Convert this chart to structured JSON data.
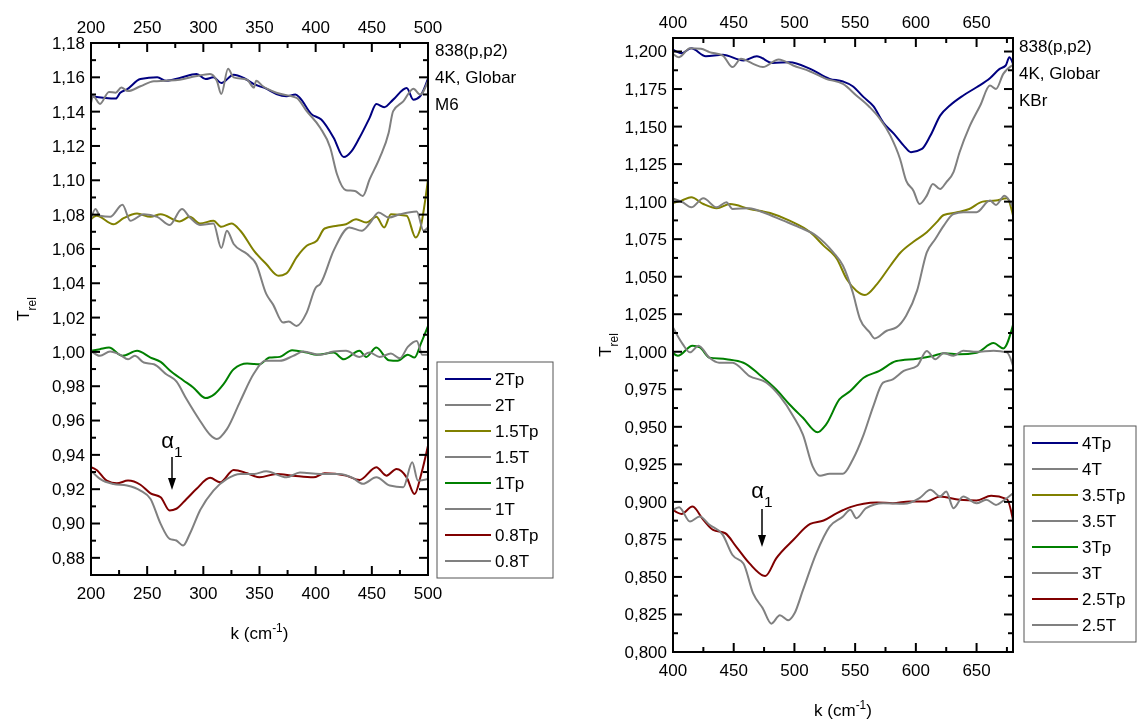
{
  "chart_data": [
    {
      "type": "line",
      "xlabel": "k (cm$^{-1}$)",
      "ylabel": "T$_{rel}$",
      "legend": "right",
      "annotations": [
        "838(p,p2)",
        "4K, Globar",
        "M6",
        "α$_{1}$"
      ],
      "xlim": [
        200,
        500
      ],
      "ylim": [
        0.87,
        1.18
      ],
      "xticks": [
        200,
        {
          "value": 225,
          "label": null
        },
        250,
        {
          "value": 275,
          "label": null
        },
        300,
        {
          "value": 325,
          "label": null
        },
        350,
        {
          "value": 375,
          "label": null
        },
        400,
        {
          "value": 425,
          "label": null
        },
        450,
        {
          "value": 475,
          "label": null
        },
        500
      ],
      "x2lim": [
        200,
        500
      ],
      "x2ticks": [
        200,
        {
          "value": 225,
          "label": null
        },
        250,
        {
          "value": 275,
          "label": null
        },
        300,
        {
          "value": 325,
          "label": null
        },
        350,
        {
          "value": 375,
          "label": null
        },
        400,
        {
          "value": 425,
          "label": null
        },
        450,
        {
          "value": 475,
          "label": null
        },
        500
      ],
      "yticks": [
        {
          "value": 0.88,
          "label": "0,88"
        },
        {
          "value": 0.89,
          "label": null
        },
        {
          "value": 0.9,
          "label": "0,90"
        },
        {
          "value": 0.91,
          "label": null
        },
        {
          "value": 0.92,
          "label": "0,92"
        },
        {
          "value": 0.93,
          "label": null
        },
        {
          "value": 0.94,
          "label": "0,94"
        },
        {
          "value": 0.95,
          "label": null
        },
        {
          "value": 0.96,
          "label": "0,96"
        },
        {
          "value": 0.97,
          "label": null
        },
        {
          "value": 0.98,
          "label": "0,98"
        },
        {
          "value": 0.99,
          "label": null
        },
        {
          "value": 1.0,
          "label": "1,00"
        },
        {
          "value": 1.01,
          "label": null
        },
        {
          "value": 1.02,
          "label": "1,02"
        },
        {
          "value": 1.03,
          "label": null
        },
        {
          "value": 1.04,
          "label": "1,04"
        },
        {
          "value": 1.05,
          "label": null
        },
        {
          "value": 1.06,
          "label": "1,06"
        },
        {
          "value": 1.07,
          "label": null
        },
        {
          "value": 1.08,
          "label": "1,08"
        },
        {
          "value": 1.09,
          "label": null
        },
        {
          "value": 1.1,
          "label": "1,10"
        },
        {
          "value": 1.11,
          "label": null
        },
        {
          "value": 1.12,
          "label": "1,12"
        },
        {
          "value": 1.13,
          "label": null
        },
        {
          "value": 1.14,
          "label": "1,14"
        },
        {
          "value": 1.15,
          "label": null
        },
        {
          "value": 1.16,
          "label": "1,16"
        },
        {
          "value": 1.17,
          "label": null
        },
        {
          "value": 1.18,
          "label": "1,18"
        }
      ],
      "series": [
        {
          "name": "2Tp",
          "color": "#000080",
          "x": [
            200,
            222,
            226,
            232,
            244,
            259,
            267,
            279,
            294,
            302,
            309,
            316,
            327,
            336,
            345,
            356,
            365,
            374,
            382,
            386,
            396,
            405,
            416,
            425,
            432,
            439,
            448,
            454,
            461,
            469,
            481,
            487,
            493,
            500
          ],
          "values": [
            1.149,
            1.1476,
            1.151,
            1.153,
            1.159,
            1.16,
            1.158,
            1.1596,
            1.162,
            1.159,
            1.16,
            1.1567,
            1.1615,
            1.1596,
            1.156,
            1.1534,
            1.1503,
            1.149,
            1.15,
            1.148,
            1.1387,
            1.1354,
            1.1248,
            1.1135,
            1.117,
            1.1248,
            1.1364,
            1.1445,
            1.1426,
            1.147,
            1.1538,
            1.147,
            1.149,
            1.1592
          ]
        },
        {
          "name": "2T",
          "color": "#808080",
          "x": [
            200,
            202,
            208,
            216,
            222,
            227,
            233,
            244,
            256,
            267,
            279,
            293,
            306,
            312,
            316,
            322,
            327,
            339,
            345,
            347,
            353,
            365,
            383,
            392,
            404,
            413,
            419,
            427,
            435,
            442,
            448,
            457,
            465,
            469,
            478,
            487,
            493,
            500
          ],
          "values": [
            1.145,
            1.149,
            1.1445,
            1.1515,
            1.151,
            1.154,
            1.152,
            1.1548,
            1.1577,
            1.158,
            1.1586,
            1.1606,
            1.162,
            1.158,
            1.1503,
            1.165,
            1.16,
            1.1586,
            1.154,
            1.158,
            1.1548,
            1.151,
            1.148,
            1.1403,
            1.1306,
            1.119,
            1.1035,
            1.0942,
            1.0938,
            1.0909,
            1.1005,
            1.1131,
            1.1277,
            1.1403,
            1.146,
            1.1534,
            1.15,
            1.158
          ]
        },
        {
          "name": "1.5Tp",
          "color": "#808000",
          "x": [
            200,
            205,
            220,
            229,
            241,
            253,
            262,
            279,
            288,
            297,
            309,
            316,
            325,
            333,
            345,
            356,
            367,
            374,
            383,
            392,
            401,
            408,
            419,
            427,
            436,
            445,
            454,
            461,
            467,
            481,
            489,
            493,
            500
          ],
          "values": [
            1.0773,
            1.0793,
            1.0744,
            1.0779,
            1.0806,
            1.0787,
            1.0802,
            1.076,
            1.0787,
            1.0748,
            1.0764,
            1.0729,
            1.0748,
            1.0706,
            1.059,
            1.0512,
            1.0444,
            1.0458,
            1.0551,
            1.0618,
            1.0648,
            1.0719,
            1.0735,
            1.0744,
            1.0773,
            1.0754,
            1.0787,
            1.0725,
            1.0802,
            1.0793,
            1.0667,
            1.0715,
            1.1006
          ]
        },
        {
          "name": "1.5T",
          "color": "#808080",
          "x": [
            200,
            204,
            208,
            217,
            228,
            235,
            247,
            259,
            270,
            281,
            288,
            297,
            309,
            316,
            321,
            327,
            339,
            347,
            356,
            362,
            371,
            376,
            383,
            392,
            400,
            404,
            416,
            430,
            441,
            448,
            456,
            465,
            475,
            490,
            496,
            500
          ],
          "values": [
            1.0773,
            1.0832,
            1.0793,
            1.0787,
            1.0857,
            1.0764,
            1.0802,
            1.0787,
            1.074,
            1.0832,
            1.0783,
            1.074,
            1.0748,
            1.0605,
            1.0706,
            1.0629,
            1.057,
            1.0512,
            1.0338,
            1.0277,
            1.0171,
            1.0177,
            1.0151,
            1.0229,
            1.0374,
            1.0395,
            1.059,
            1.0725,
            1.0706,
            1.0748,
            1.0812,
            1.0783,
            1.0802,
            1.0818,
            1.0706,
            1.0725
          ]
        },
        {
          "name": "1Tp",
          "color": "#008000",
          "x": [
            200,
            208,
            216,
            228,
            241,
            253,
            262,
            270,
            282,
            291,
            302,
            310,
            318,
            327,
            339,
            350,
            359,
            368,
            379,
            392,
            401,
            416,
            425,
            439,
            445,
            454,
            465,
            473,
            482,
            488,
            494,
            500
          ],
          "values": [
            1.0006,
            1.0016,
            1.0025,
            0.9977,
            1.0006,
            0.9967,
            0.9942,
            0.9893,
            0.9835,
            0.9793,
            0.9731,
            0.9754,
            0.9812,
            0.9899,
            0.9932,
            0.9928,
            0.9967,
            0.9971,
            1.001,
            0.9996,
            0.9983,
            0.9996,
            0.9957,
            1.0006,
            0.9971,
            1.0025,
            0.9952,
            0.9948,
            0.9983,
            0.9967,
            1.0054,
            1.0151
          ]
        },
        {
          "name": "1T",
          "color": "#808080",
          "x": [
            200,
            208,
            217,
            226,
            233,
            239,
            247,
            256,
            267,
            276,
            285,
            297,
            306,
            312,
            321,
            333,
            345,
            355,
            368,
            380,
            389,
            404,
            416,
            427,
            439,
            448,
            457,
            467,
            475,
            482,
            490,
            495,
            500
          ],
          "values": [
            1.0006,
            0.9977,
            1.0002,
            0.9983,
            0.9957,
            0.9977,
            0.9938,
            0.9928,
            0.987,
            0.9828,
            0.9725,
            0.9599,
            0.9517,
            0.9492,
            0.955,
            0.9715,
            0.9874,
            0.9948,
            0.9948,
            0.9977,
            1.0002,
            0.9983,
            1.0002,
            1.0006,
            0.9971,
            0.9996,
            0.9971,
            0.999,
            0.9963,
            1.0029,
            1.0064,
            0.9983,
            0.9983
          ]
        },
        {
          "name": "0.8Tp",
          "color": "#800000",
          "x": [
            200,
            205,
            214,
            223,
            233,
            244,
            253,
            262,
            270,
            276,
            285,
            294,
            306,
            315,
            327,
            339,
            350,
            365,
            380,
            398,
            408,
            427,
            439,
            454,
            463,
            472,
            481,
            488,
            494,
            500
          ],
          "values": [
            0.9328,
            0.9312,
            0.925,
            0.9234,
            0.925,
            0.9226,
            0.9176,
            0.9153,
            0.9076,
            0.9086,
            0.9143,
            0.9202,
            0.9266,
            0.924,
            0.9312,
            0.9293,
            0.9269,
            0.9289,
            0.9279,
            0.9269,
            0.9293,
            0.9279,
            0.9254,
            0.9328,
            0.9279,
            0.9318,
            0.9269,
            0.9172,
            0.9289,
            0.9454
          ]
        },
        {
          "name": "0.8T",
          "color": "#808080",
          "x": [
            200,
            208,
            220,
            232,
            244,
            253,
            262,
            270,
            276,
            282,
            288,
            297,
            309,
            321,
            333,
            345,
            356,
            374,
            386,
            404,
            421,
            433,
            442,
            454,
            466,
            478,
            486,
            491,
            500
          ],
          "values": [
            0.9308,
            0.926,
            0.923,
            0.9221,
            0.9192,
            0.9143,
            0.8998,
            0.8911,
            0.8901,
            0.8872,
            0.894,
            0.9076,
            0.9192,
            0.926,
            0.9289,
            0.9289,
            0.9304,
            0.9269,
            0.9298,
            0.9289,
            0.9289,
            0.9266,
            0.9231,
            0.9269,
            0.9221,
            0.9211,
            0.9357,
            0.925,
            0.926
          ]
        }
      ]
    },
    {
      "type": "line",
      "xlabel": "k (cm$^{-1}$)",
      "ylabel": "T$_{rel}$",
      "legend": "right",
      "annotations": [
        "838(p,p2)",
        "4K, Globar",
        "KBr",
        "α$_{1}$"
      ],
      "xlim": [
        400,
        680
      ],
      "ylim": [
        0.8,
        1.209
      ],
      "xticks": [
        400,
        {
          "value": 425,
          "label": null
        },
        450,
        {
          "value": 475,
          "label": null
        },
        500,
        {
          "value": 525,
          "label": null
        },
        550,
        {
          "value": 575,
          "label": null
        },
        600,
        {
          "value": 625,
          "label": null
        },
        650,
        {
          "value": 675,
          "label": null
        }
      ],
      "x2lim": [
        400,
        680
      ],
      "x2ticks": [
        400,
        {
          "value": 425,
          "label": null
        },
        450,
        {
          "value": 475,
          "label": null
        },
        500,
        {
          "value": 525,
          "label": null
        },
        550,
        {
          "value": 575,
          "label": null
        },
        600,
        {
          "value": 625,
          "label": null
        },
        650,
        {
          "value": 675,
          "label": null
        }
      ],
      "yticks": [
        {
          "value": 0.8,
          "label": "0,800"
        },
        {
          "value": 0.8125,
          "label": null
        },
        {
          "value": 0.825,
          "label": "0,825"
        },
        {
          "value": 0.8375,
          "label": null
        },
        {
          "value": 0.85,
          "label": "0,850"
        },
        {
          "value": 0.8625,
          "label": null
        },
        {
          "value": 0.875,
          "label": "0,875"
        },
        {
          "value": 0.8875,
          "label": null
        },
        {
          "value": 0.9,
          "label": "0,900"
        },
        {
          "value": 0.9125,
          "label": null
        },
        {
          "value": 0.925,
          "label": "0,925"
        },
        {
          "value": 0.9375,
          "label": null
        },
        {
          "value": 0.95,
          "label": "0,950"
        },
        {
          "value": 0.9625,
          "label": null
        },
        {
          "value": 0.975,
          "label": "0,975"
        },
        {
          "value": 0.9875,
          "label": null
        },
        {
          "value": 1.0,
          "label": "1,000"
        },
        {
          "value": 1.0125,
          "label": null
        },
        {
          "value": 1.025,
          "label": "1,025"
        },
        {
          "value": 1.0375,
          "label": null
        },
        {
          "value": 1.05,
          "label": "1,050"
        },
        {
          "value": 1.0625,
          "label": null
        },
        {
          "value": 1.075,
          "label": "1,075"
        },
        {
          "value": 1.0875,
          "label": null
        },
        {
          "value": 1.1,
          "label": "1,100"
        },
        {
          "value": 1.1125,
          "label": null
        },
        {
          "value": 1.125,
          "label": "1,125"
        },
        {
          "value": 1.1375,
          "label": null
        },
        {
          "value": 1.15,
          "label": "1,150"
        },
        {
          "value": 1.1625,
          "label": null
        },
        {
          "value": 1.175,
          "label": "1,175"
        },
        {
          "value": 1.1875,
          "label": null
        },
        {
          "value": 1.2,
          "label": "1,200"
        }
      ],
      "series": [
        {
          "name": "4Tp",
          "color": "#000080",
          "x": [
            400,
            407,
            415,
            427,
            441,
            458,
            469,
            482,
            496,
            513,
            529,
            540,
            548,
            557,
            565,
            573,
            582,
            590,
            596,
            605,
            612,
            620,
            628,
            639,
            650,
            661,
            669,
            674,
            677,
            680
          ],
          "values": [
            1.2013,
            1.1989,
            1.2022,
            1.1969,
            1.1978,
            1.194,
            1.1969,
            1.1924,
            1.1929,
            1.1884,
            1.1818,
            1.18,
            1.1769,
            1.1696,
            1.1636,
            1.1529,
            1.1451,
            1.1373,
            1.1329,
            1.1351,
            1.144,
            1.1573,
            1.164,
            1.1707,
            1.1762,
            1.1822,
            1.1884,
            1.1907,
            1.1962,
            1.1918
          ]
        },
        {
          "name": "4T",
          "color": "#808080",
          "x": [
            400,
            405,
            414,
            423,
            430,
            441,
            449,
            456,
            466,
            474,
            487,
            499,
            513,
            526,
            540,
            551,
            562,
            570,
            579,
            587,
            592,
            598,
            603,
            609,
            614,
            620,
            625,
            631,
            636,
            644,
            653,
            661,
            666,
            672,
            680
          ],
          "values": [
            1.1984,
            1.1962,
            1.2022,
            1.2018,
            1.1996,
            1.1973,
            1.1896,
            1.1951,
            1.1918,
            1.1896,
            1.1947,
            1.1907,
            1.1867,
            1.1818,
            1.1784,
            1.1707,
            1.1629,
            1.1556,
            1.144,
            1.1284,
            1.114,
            1.1073,
            1.0984,
            1.104,
            1.1118,
            1.1084,
            1.1129,
            1.1196,
            1.1329,
            1.1496,
            1.164,
            1.1773,
            1.1751,
            1.1851,
            1.1911
          ]
        },
        {
          "name": "3.5Tp",
          "color": "#808000",
          "x": [
            400,
            407,
            415,
            425,
            436,
            447,
            463,
            480,
            496,
            513,
            524,
            535,
            543,
            551,
            558,
            568,
            579,
            587,
            598,
            609,
            617,
            623,
            634,
            644,
            655,
            666,
            675,
            680
          ],
          "values": [
            1.0991,
            1.1007,
            1.1029,
            1.0984,
            1.0956,
            1.0984,
            1.0951,
            1.0924,
            1.0873,
            1.0796,
            1.0707,
            1.0618,
            1.0485,
            1.0407,
            1.0378,
            1.0451,
            1.0573,
            1.0658,
            1.0733,
            1.0796,
            1.0862,
            1.0911,
            1.0929,
            1.0951,
            1.1,
            1.1007,
            1.1022,
            1.0907
          ]
        },
        {
          "name": "3.5T",
          "color": "#808080",
          "x": [
            400,
            408,
            415,
            425,
            436,
            444,
            449,
            463,
            474,
            491,
            504,
            518,
            532,
            540,
            548,
            554,
            562,
            566,
            576,
            584,
            592,
            601,
            609,
            616,
            623,
            631,
            639,
            650,
            661,
            666,
            673,
            680
          ],
          "values": [
            1.1022,
            1.0996,
            1.0962,
            1.1022,
            1.0962,
            1.0996,
            1.0951,
            1.0956,
            1.0929,
            1.0873,
            1.0829,
            1.0773,
            1.0662,
            1.0573,
            1.0396,
            1.0218,
            1.0129,
            1.0089,
            1.014,
            1.0162,
            1.024,
            1.0407,
            1.0662,
            1.0751,
            1.084,
            1.0918,
            1.0929,
            1.0929,
            1.1007,
            1.0978,
            1.104,
            1.0962
          ]
        },
        {
          "name": "3Tp",
          "color": "#008000",
          "x": [
            400,
            404,
            416,
            422,
            430,
            444,
            458,
            471,
            485,
            496,
            507,
            519,
            526,
            537,
            546,
            557,
            570,
            584,
            601,
            614,
            623,
            636,
            650,
            664,
            672,
            680
          ],
          "values": [
            0.9991,
            0.9973,
            1.004,
            1.003,
            0.9961,
            0.995,
            0.9927,
            0.9849,
            0.9749,
            0.9649,
            0.956,
            0.9464,
            0.9515,
            0.9682,
            0.9738,
            0.9827,
            0.9872,
            0.9938,
            0.9954,
            0.9972,
            0.999,
            0.9983,
            0.9994,
            1.0058,
            1.0022,
            1.0178
          ]
        },
        {
          "name": "3T",
          "color": "#808080",
          "x": [
            400,
            408,
            414,
            421,
            430,
            438,
            449,
            463,
            477,
            488,
            499,
            507,
            515,
            521,
            529,
            540,
            548,
            557,
            565,
            573,
            581,
            590,
            601,
            609,
            616,
            623,
            631,
            639,
            650,
            664,
            675,
            680
          ],
          "values": [
            1.0162,
            1.0051,
            0.9996,
            1.004,
            0.996,
            0.9927,
            0.9927,
            0.9838,
            0.9794,
            0.9704,
            0.9571,
            0.9448,
            0.9237,
            0.9174,
            0.9188,
            0.9188,
            0.9281,
            0.9448,
            0.9638,
            0.9794,
            0.9816,
            0.9872,
            0.9905,
            1.0005,
            0.995,
            0.9991,
            0.9973,
            1.0007,
            1.0,
            1.0007,
            0.9996,
            0.9907
          ]
        },
        {
          "name": "2.5Tp",
          "color": "#800000",
          "x": [
            400,
            407,
            416,
            425,
            433,
            443,
            452,
            463,
            476,
            485,
            499,
            513,
            524,
            535,
            546,
            568,
            581,
            595,
            609,
            620,
            636,
            650,
            662,
            675,
            680
          ],
          "values": [
            0.8947,
            0.892,
            0.8969,
            0.888,
            0.8813,
            0.8791,
            0.8702,
            0.859,
            0.8506,
            0.8624,
            0.8746,
            0.8853,
            0.8876,
            0.8925,
            0.8965,
            0.8996,
            0.8991,
            0.9003,
            0.9003,
            0.9036,
            0.9014,
            0.9009,
            0.904,
            0.9018,
            0.888
          ]
        },
        {
          "name": "2.5T",
          "color": "#808080",
          "x": [
            400,
            405,
            414,
            422,
            430,
            441,
            449,
            458,
            466,
            474,
            481,
            488,
            495,
            500,
            507,
            518,
            529,
            540,
            546,
            551,
            559,
            573,
            590,
            603,
            612,
            620,
            625,
            631,
            639,
            650,
            658,
            666,
            673,
            680
          ],
          "values": [
            0.8947,
            0.8965,
            0.8869,
            0.8902,
            0.8847,
            0.878,
            0.8646,
            0.859,
            0.839,
            0.829,
            0.8189,
            0.8245,
            0.8212,
            0.8256,
            0.8412,
            0.8657,
            0.8835,
            0.8902,
            0.8947,
            0.8891,
            0.8958,
            0.8991,
            0.8987,
            0.9025,
            0.908,
            0.9036,
            0.9069,
            0.8958,
            0.9036,
            0.8991,
            0.9014,
            0.898,
            0.9014,
            0.9058
          ]
        }
      ]
    }
  ]
}
